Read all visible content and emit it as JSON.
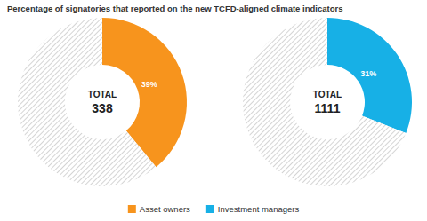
{
  "chart_data": {
    "type": "pie",
    "title": "Percentage of signatories that reported on the new TCFD-aligned climate indicators",
    "center_label": "TOTAL",
    "data_labels": true,
    "legend": "bottom",
    "series": [
      {
        "name": "Asset owners",
        "colors": [
          "#f7941d",
          "#bdbdbd"
        ],
        "total": 338,
        "values": [
          39,
          61
        ],
        "value_labels": [
          "39%",
          null
        ]
      },
      {
        "name": "Investment managers",
        "colors": [
          "#17b0e6",
          "#bdbdbd"
        ],
        "total": 1111,
        "values": [
          31,
          69
        ],
        "value_labels": [
          "31%",
          null
        ]
      }
    ]
  }
}
